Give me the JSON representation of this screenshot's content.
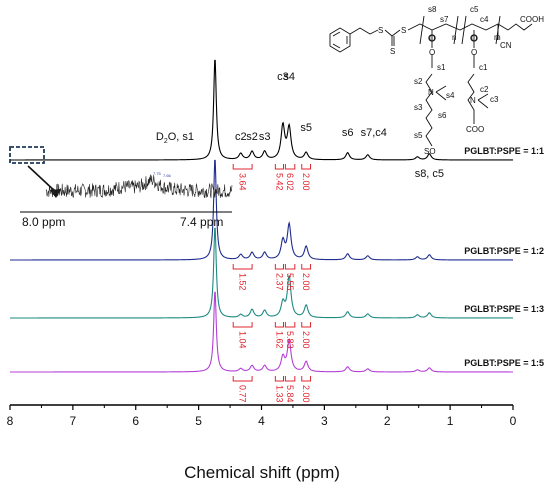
{
  "chart_data": {
    "type": "line",
    "xlabel": "Chemical shift (ppm)",
    "xlim": [
      8,
      0
    ],
    "x_ticks": [
      "8",
      "7",
      "6",
      "5",
      "4",
      "3",
      "2",
      "1",
      "0"
    ],
    "x_tick_values": [
      8,
      7,
      6,
      5,
      4,
      3,
      2,
      1,
      0
    ],
    "grid": false,
    "series": [
      {
        "name": "PGLBT:PSPE = 1:1",
        "color": "#000000",
        "integrations": [
          {
            "label": "3.64",
            "from": 4.45,
            "to": 4.15
          },
          {
            "label": "5.42",
            "from": 3.78,
            "to": 3.65
          },
          {
            "label": "6.02",
            "from": 3.62,
            "to": 3.47
          },
          {
            "label": "2.00",
            "from": 3.36,
            "to": 3.22
          }
        ],
        "peaks": [
          {
            "ppm": 4.74,
            "height": 1.0
          },
          {
            "ppm": 4.33,
            "height": 0.06
          },
          {
            "ppm": 4.15,
            "height": 0.08
          },
          {
            "ppm": 3.95,
            "height": 0.08
          },
          {
            "ppm": 3.66,
            "height": 0.33
          },
          {
            "ppm": 3.56,
            "height": 0.31
          },
          {
            "ppm": 3.29,
            "height": 0.07
          },
          {
            "ppm": 2.63,
            "height": 0.07
          },
          {
            "ppm": 2.31,
            "height": 0.05
          },
          {
            "ppm": 1.52,
            "height": 0.03
          },
          {
            "ppm": 1.33,
            "height": 0.06
          }
        ]
      },
      {
        "name": "PGLBT:PSPE = 1:2",
        "color": "#1f2c8f",
        "integrations": [
          {
            "label": "1.52",
            "from": 4.45,
            "to": 4.15
          },
          {
            "label": "2.37",
            "from": 3.78,
            "to": 3.65
          },
          {
            "label": "5.55",
            "from": 3.62,
            "to": 3.47
          },
          {
            "label": "2.00",
            "from": 3.36,
            "to": 3.22
          }
        ],
        "peaks": [
          {
            "ppm": 4.74,
            "height": 1.0
          },
          {
            "ppm": 4.33,
            "height": 0.05
          },
          {
            "ppm": 4.15,
            "height": 0.07
          },
          {
            "ppm": 3.95,
            "height": 0.07
          },
          {
            "ppm": 3.66,
            "height": 0.18
          },
          {
            "ppm": 3.56,
            "height": 0.34
          },
          {
            "ppm": 3.29,
            "height": 0.13
          },
          {
            "ppm": 2.63,
            "height": 0.06
          },
          {
            "ppm": 2.31,
            "height": 0.04
          },
          {
            "ppm": 1.52,
            "height": 0.03
          },
          {
            "ppm": 1.33,
            "height": 0.05
          }
        ]
      },
      {
        "name": "PGLBT:PSPE = 1:3",
        "color": "#1e8a80",
        "integrations": [
          {
            "label": "1.04",
            "from": 4.45,
            "to": 4.15
          },
          {
            "label": "1.62",
            "from": 3.78,
            "to": 3.65
          },
          {
            "label": "5.83",
            "from": 3.62,
            "to": 3.47
          },
          {
            "label": "2.00",
            "from": 3.36,
            "to": 3.22
          }
        ],
        "peaks": [
          {
            "ppm": 4.74,
            "height": 0.9
          },
          {
            "ppm": 4.33,
            "height": 0.03
          },
          {
            "ppm": 4.15,
            "height": 0.08
          },
          {
            "ppm": 3.95,
            "height": 0.07
          },
          {
            "ppm": 3.66,
            "height": 0.14
          },
          {
            "ppm": 3.56,
            "height": 0.4
          },
          {
            "ppm": 3.29,
            "height": 0.12
          },
          {
            "ppm": 2.63,
            "height": 0.06
          },
          {
            "ppm": 2.31,
            "height": 0.04
          },
          {
            "ppm": 1.52,
            "height": 0.03
          },
          {
            "ppm": 1.33,
            "height": 0.05
          }
        ]
      },
      {
        "name": "PGLBT:PSPE = 1:5",
        "color": "#b43fd6",
        "integrations": [
          {
            "label": "0.77",
            "from": 4.45,
            "to": 4.15
          },
          {
            "label": "1.33",
            "from": 3.78,
            "to": 3.65
          },
          {
            "label": "5.84",
            "from": 3.62,
            "to": 3.47
          },
          {
            "label": "2.00",
            "from": 3.36,
            "to": 3.22
          }
        ],
        "peaks": [
          {
            "ppm": 4.74,
            "height": 0.8
          },
          {
            "ppm": 4.33,
            "height": 0.03
          },
          {
            "ppm": 4.15,
            "height": 0.06
          },
          {
            "ppm": 3.95,
            "height": 0.06
          },
          {
            "ppm": 3.66,
            "height": 0.14
          },
          {
            "ppm": 3.56,
            "height": 0.3
          },
          {
            "ppm": 3.29,
            "height": 0.1
          },
          {
            "ppm": 2.63,
            "height": 0.05
          },
          {
            "ppm": 2.31,
            "height": 0.03
          },
          {
            "ppm": 1.52,
            "height": 0.02
          },
          {
            "ppm": 1.33,
            "height": 0.04
          }
        ]
      }
    ],
    "peak_labels": [
      {
        "text": "D",
        "sub": "2",
        "tail": "O, s1",
        "ppm": 4.74
      },
      {
        "text": "c2",
        "ppm": 4.33
      },
      {
        "text": "s2",
        "ppm": 4.15
      },
      {
        "text": "s3",
        "ppm": 3.95
      },
      {
        "text": "c3",
        "ppm": 3.66
      },
      {
        "text": "s4",
        "ppm": 3.56
      },
      {
        "text": "s5",
        "ppm": 3.29
      },
      {
        "text": "s6",
        "ppm": 2.63
      },
      {
        "text": "s7,c4",
        "ppm": 2.31
      },
      {
        "text": "s8, c5",
        "ppm": 1.33
      }
    ],
    "inset": {
      "range_labels": [
        "8.0 ppm",
        "7.4 ppm"
      ],
      "xlim": [
        8.0,
        7.4
      ],
      "peak_annotations": [
        "7.75",
        "7.66"
      ],
      "peaks": [
        {
          "ppm": 7.75,
          "height": 0.2
        },
        {
          "ppm": 7.66,
          "height": 0.65
        }
      ]
    },
    "structure": {
      "atom_labels": [
        "S",
        "S",
        "S",
        "CN",
        "COOH",
        "O",
        "O",
        "O",
        "O",
        "N",
        "N",
        "COO",
        "SO",
        "n",
        "m"
      ],
      "site_labels": [
        "s8",
        "s7",
        "c5",
        "c4",
        "s1",
        "c1",
        "s2",
        "s4",
        "c2",
        "c3",
        "s3",
        "s6",
        "s5"
      ]
    }
  }
}
